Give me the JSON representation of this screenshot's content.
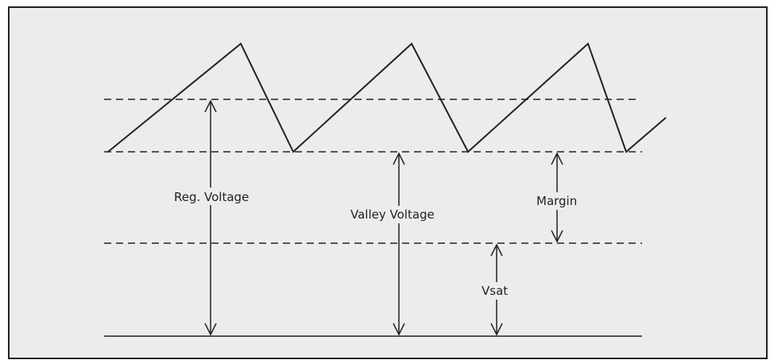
{
  "labels": {
    "reg_voltage": "Reg. Voltage",
    "valley_voltage": "Valley Voltage",
    "margin": "Margin",
    "vsat": "Vsat"
  }
}
